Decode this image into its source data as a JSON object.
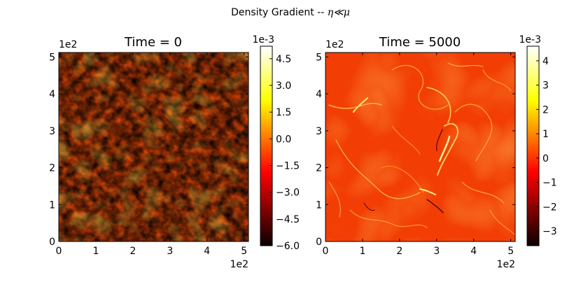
{
  "figure": {
    "suptitle_text": "Density Gradient -- ",
    "suptitle_math": "η≪μ"
  },
  "chart_data": [
    {
      "type": "heatmap",
      "title": "Time = 0",
      "x_ticks": [
        "0",
        "1",
        "2",
        "3",
        "4",
        "5"
      ],
      "y_ticks": [
        "0",
        "1",
        "2",
        "3",
        "4",
        "5"
      ],
      "x_offset": "1e2",
      "y_offset": "1e2",
      "xlim": [
        0,
        512
      ],
      "ylim": [
        0,
        512
      ],
      "colormap": "hot",
      "colorbar": {
        "offset": "1e-3",
        "ticks": [
          "4.5",
          "3.0",
          "1.5",
          "0.0",
          "−1.5",
          "−3.0",
          "−4.5",
          "−6.0"
        ],
        "tick_values": [
          4.5,
          3.0,
          1.5,
          0.0,
          -1.5,
          -3.0,
          -4.5,
          -6.0
        ],
        "range": [
          -6.0,
          5.2
        ]
      },
      "pattern": "turbulent-noise"
    },
    {
      "type": "heatmap",
      "title": "Time = 5000",
      "x_ticks": [
        "0",
        "1",
        "2",
        "3",
        "4",
        "5"
      ],
      "y_ticks": [
        "0",
        "1",
        "2",
        "3",
        "4",
        "5"
      ],
      "x_offset": "1e2",
      "y_offset": "1e2",
      "xlim": [
        0,
        512
      ],
      "ylim": [
        0,
        512
      ],
      "colormap": "hot",
      "colorbar": {
        "offset": "1e-3",
        "ticks": [
          "4",
          "3",
          "2",
          "1",
          "0",
          "−1",
          "−2",
          "−3"
        ],
        "tick_values": [
          4,
          3,
          2,
          1,
          0,
          -1,
          -2,
          -3
        ],
        "range": [
          -3.6,
          4.6
        ]
      },
      "pattern": "smooth-filaments"
    }
  ]
}
